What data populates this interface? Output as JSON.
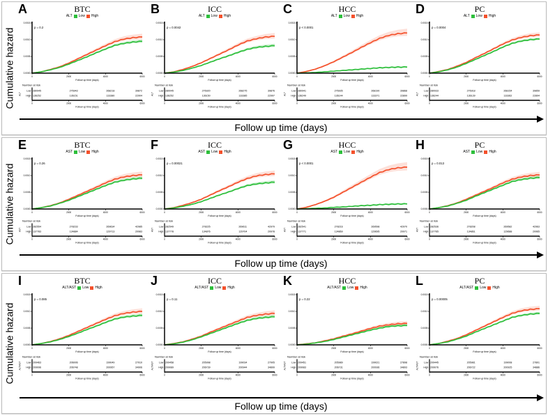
{
  "colors": {
    "low": "#2ebf3c",
    "high": "#f4512c",
    "low_fill": "rgba(46,191,60,0.22)",
    "high_fill": "rgba(244,81,44,0.18)",
    "axis": "#000000"
  },
  "legend": {
    "low": "Low",
    "high": "High"
  },
  "risk_table": {
    "title": "Number at risk",
    "row_labels": [
      "Low",
      "High"
    ]
  },
  "axis": {
    "x_title": "Follow up time (days)",
    "x_ticks": [
      "0",
      "2000",
      "4000",
      "6000"
    ],
    "x_tick_values": [
      0,
      2000,
      4000,
      6000
    ],
    "y_ticks": [
      "0.0000",
      "0.0005",
      "0.0010",
      "0.0015"
    ],
    "y_tick_values": [
      0,
      0.5,
      1.0,
      1.5
    ],
    "xlim": [
      0,
      6000
    ],
    "ylim_e3": [
      0,
      1.5
    ]
  },
  "rows": [
    {
      "y_axis_label": "Cumulative hazard",
      "x_axis_label": "Follow up time (days)",
      "group": "ALT"
    },
    {
      "y_axis_label": "Cumulative hazard",
      "x_axis_label": "Follow up time (days)",
      "group": "AST"
    },
    {
      "y_axis_label": "Cumulative hazard",
      "x_axis_label": "Follow up time (days)",
      "group": "ALT/AST"
    }
  ],
  "chart_data": {
    "type": "line",
    "y_unit": "cumulative hazard (×10⁻³)",
    "x_days": [
      0,
      500,
      1000,
      1500,
      2000,
      2500,
      3000,
      3500,
      4000,
      4500,
      5000,
      5500,
      6000
    ],
    "panels": [
      {
        "letter": "A",
        "title": "BTC",
        "group": "ALT",
        "p_value": "p = 0.2",
        "series": [
          {
            "name": "Low",
            "values": [
              0,
              0.04,
              0.1,
              0.17,
              0.27,
              0.38,
              0.49,
              0.61,
              0.72,
              0.83,
              0.89,
              0.93,
              0.95
            ]
          },
          {
            "name": "High",
            "values": [
              0,
              0.04,
              0.11,
              0.19,
              0.3,
              0.43,
              0.56,
              0.69,
              0.82,
              0.94,
              1.02,
              1.06,
              1.08
            ]
          }
        ],
        "ci_halfwidth": {
          "low": 0.06,
          "high": 0.1
        },
        "risk": {
          "Low": [
            "280945",
            "276943",
            "268218",
            "39872"
          ],
          "High": [
            "136252",
            "136151",
            "133380",
            "22904"
          ]
        }
      },
      {
        "letter": "B",
        "title": "ICC",
        "group": "ALT",
        "p_value": "p = 0.0042",
        "series": [
          {
            "name": "Low",
            "values": [
              0,
              0.03,
              0.08,
              0.15,
              0.23,
              0.33,
              0.43,
              0.52,
              0.62,
              0.71,
              0.77,
              0.8,
              0.82
            ]
          },
          {
            "name": "High",
            "values": [
              0,
              0.04,
              0.11,
              0.2,
              0.31,
              0.44,
              0.57,
              0.7,
              0.84,
              0.96,
              1.03,
              1.08,
              1.1
            ]
          }
        ],
        "ci_halfwidth": {
          "low": 0.06,
          "high": 0.1
        },
        "risk": {
          "Low": [
            "280045",
            "276920",
            "268275",
            "39876"
          ],
          "High": [
            "136252",
            "136150",
            "133385",
            "22997"
          ]
        }
      },
      {
        "letter": "C",
        "title": "HCC",
        "group": "ALT",
        "p_value": "p < 0.0001",
        "series": [
          {
            "name": "Low",
            "values": [
              0,
              0.01,
              0.02,
              0.04,
              0.06,
              0.08,
              0.1,
              0.12,
              0.14,
              0.16,
              0.17,
              0.18,
              0.18
            ]
          },
          {
            "name": "High",
            "values": [
              0,
              0.05,
              0.12,
              0.22,
              0.34,
              0.48,
              0.62,
              0.77,
              0.91,
              1.04,
              1.13,
              1.18,
              1.2
            ]
          }
        ],
        "ci_halfwidth": {
          "low": 0.03,
          "high": 0.13
        },
        "risk": {
          "Low": [
            "280941",
            "276935",
            "268190",
            "39868"
          ],
          "High": [
            "136249",
            "136144",
            "133371",
            "22899"
          ]
        }
      },
      {
        "letter": "D",
        "title": "PC",
        "group": "ALT",
        "p_value": "p = 0.0004",
        "series": [
          {
            "name": "Low",
            "values": [
              0,
              0.04,
              0.1,
              0.18,
              0.29,
              0.41,
              0.53,
              0.65,
              0.78,
              0.89,
              0.96,
              1.0,
              1.02
            ]
          },
          {
            "name": "High",
            "values": [
              0,
              0.05,
              0.11,
              0.21,
              0.32,
              0.46,
              0.59,
              0.73,
              0.87,
              0.99,
              1.07,
              1.12,
              1.14
            ]
          }
        ],
        "ci_halfwidth": {
          "low": 0.05,
          "high": 0.08
        },
        "risk": {
          "Low": [
            "280933",
            "276918",
            "268154",
            "39859"
          ],
          "High": [
            "136244",
            "136139",
            "133362",
            "22894"
          ]
        }
      },
      {
        "letter": "E",
        "title": "BTC",
        "group": "AST",
        "p_value": "p = 0.26",
        "series": [
          {
            "name": "Low",
            "values": [
              0,
              0.04,
              0.09,
              0.17,
              0.26,
              0.37,
              0.48,
              0.59,
              0.7,
              0.8,
              0.86,
              0.9,
              0.92
            ]
          },
          {
            "name": "High",
            "values": [
              0,
              0.04,
              0.1,
              0.18,
              0.29,
              0.41,
              0.53,
              0.65,
              0.78,
              0.89,
              0.96,
              1.0,
              1.02
            ]
          }
        ],
        "ci_halfwidth": {
          "low": 0.06,
          "high": 0.1
        },
        "risk": {
          "Low": [
            "282554",
            "278233",
            "269634",
            "42985"
          ],
          "High": [
            "137783",
            "134884",
            "129713",
            "20983"
          ]
        }
      },
      {
        "letter": "F",
        "title": "ICC",
        "group": "AST",
        "p_value": "p = 0.00021",
        "series": [
          {
            "name": "Low",
            "values": [
              0,
              0.03,
              0.08,
              0.14,
              0.22,
              0.32,
              0.42,
              0.51,
              0.61,
              0.7,
              0.75,
              0.78,
              0.8
            ]
          },
          {
            "name": "High",
            "values": [
              0,
              0.04,
              0.11,
              0.19,
              0.29,
              0.42,
              0.55,
              0.67,
              0.8,
              0.91,
              0.99,
              1.03,
              1.05
            ]
          }
        ],
        "ci_halfwidth": {
          "low": 0.06,
          "high": 0.1
        },
        "risk": {
          "Low": [
            "282549",
            "278225",
            "269611",
            "42979"
          ],
          "High": [
            "137778",
            "134876",
            "129704",
            "20978"
          ]
        }
      },
      {
        "letter": "G",
        "title": "HCC",
        "group": "AST",
        "p_value": "p < 0.0001",
        "series": [
          {
            "name": "Low",
            "values": [
              0,
              0.01,
              0.02,
              0.03,
              0.05,
              0.06,
              0.08,
              0.1,
              0.11,
              0.13,
              0.14,
              0.15,
              0.15
            ]
          },
          {
            "name": "High",
            "values": [
              0,
              0.05,
              0.13,
              0.23,
              0.35,
              0.5,
              0.65,
              0.8,
              0.95,
              1.09,
              1.18,
              1.23,
              1.25
            ]
          }
        ],
        "ci_halfwidth": {
          "low": 0.03,
          "high": 0.15
        },
        "risk": {
          "Low": [
            "282541",
            "278216",
            "269598",
            "42970"
          ],
          "High": [
            "137771",
            "134869",
            "129695",
            "20971"
          ]
        }
      },
      {
        "letter": "H",
        "title": "PC",
        "group": "AST",
        "p_value": "p = 0.013",
        "series": [
          {
            "name": "Low",
            "values": [
              0,
              0.04,
              0.09,
              0.17,
              0.26,
              0.38,
              0.49,
              0.6,
              0.71,
              0.82,
              0.88,
              0.92,
              0.94
            ]
          },
          {
            "name": "High",
            "values": [
              0,
              0.04,
              0.1,
              0.18,
              0.29,
              0.41,
              0.53,
              0.65,
              0.78,
              0.89,
              0.96,
              1.0,
              1.02
            ]
          }
        ],
        "ci_halfwidth": {
          "low": 0.06,
          "high": 0.09
        },
        "risk": {
          "Low": [
            "282536",
            "278208",
            "269582",
            "42963"
          ],
          "High": [
            "137765",
            "134861",
            "129688",
            "20965"
          ]
        }
      },
      {
        "letter": "I",
        "title": "BTC",
        "group": "ALT/AST",
        "p_value": "p = 0.085",
        "series": [
          {
            "name": "Low",
            "values": [
              0,
              0.04,
              0.09,
              0.16,
              0.25,
              0.35,
              0.46,
              0.56,
              0.67,
              0.77,
              0.83,
              0.86,
              0.88
            ]
          },
          {
            "name": "High",
            "values": [
              0,
              0.04,
              0.1,
              0.18,
              0.28,
              0.4,
              0.52,
              0.64,
              0.76,
              0.87,
              0.94,
              0.98,
              1.0
            ]
          }
        ],
        "ci_halfwidth": {
          "low": 0.06,
          "high": 0.09
        },
        "risk": {
          "Low": [
            "209463",
            "206006",
            "199049",
            "27910"
          ],
          "High": [
            "209096",
            "206748",
            "200957",
            "34906"
          ]
        }
      },
      {
        "letter": "J",
        "title": "ICC",
        "group": "ALT/AST",
        "p_value": "p = 0.11",
        "series": [
          {
            "name": "Low",
            "values": [
              0,
              0.03,
              0.08,
              0.15,
              0.24,
              0.34,
              0.44,
              0.54,
              0.64,
              0.73,
              0.79,
              0.82,
              0.84
            ]
          },
          {
            "name": "High",
            "values": [
              0,
              0.04,
              0.09,
              0.17,
              0.26,
              0.38,
              0.49,
              0.6,
              0.71,
              0.82,
              0.88,
              0.92,
              0.94
            ]
          }
        ],
        "ci_halfwidth": {
          "low": 0.06,
          "high": 0.09
        },
        "risk": {
          "Low": [
            "209458",
            "205998",
            "199034",
            "27905"
          ],
          "High": [
            "209089",
            "206739",
            "200944",
            "34899"
          ]
        }
      },
      {
        "letter": "K",
        "title": "HCC",
        "group": "ALT/AST",
        "p_value": "p = 0.22",
        "series": [
          {
            "name": "Low",
            "values": [
              0,
              0.02,
              0.06,
              0.1,
              0.16,
              0.23,
              0.3,
              0.37,
              0.44,
              0.5,
              0.55,
              0.57,
              0.58
            ]
          },
          {
            "name": "High",
            "values": [
              0,
              0.03,
              0.06,
              0.12,
              0.18,
              0.26,
              0.33,
              0.41,
              0.49,
              0.56,
              0.6,
              0.63,
              0.64
            ]
          }
        ],
        "ci_halfwidth": {
          "low": 0.05,
          "high": 0.07
        },
        "risk": {
          "Low": [
            "209451",
            "205989",
            "199021",
            "27898"
          ],
          "High": [
            "209083",
            "206731",
            "200936",
            "34893"
          ]
        }
      },
      {
        "letter": "L",
        "title": "PC",
        "group": "ALT/AST",
        "p_value": "p = 0.00005",
        "series": [
          {
            "name": "Low",
            "values": [
              0,
              0.04,
              0.09,
              0.17,
              0.26,
              0.38,
              0.49,
              0.6,
              0.71,
              0.82,
              0.88,
              0.92,
              0.94
            ]
          },
          {
            "name": "High",
            "values": [
              0,
              0.04,
              0.11,
              0.19,
              0.3,
              0.43,
              0.56,
              0.69,
              0.82,
              0.94,
              1.02,
              1.06,
              1.08
            ]
          }
        ],
        "ci_halfwidth": {
          "low": 0.05,
          "high": 0.09
        },
        "risk": {
          "Low": [
            "209445",
            "205981",
            "199008",
            "27891"
          ],
          "High": [
            "209076",
            "206722",
            "200925",
            "34886"
          ]
        }
      }
    ]
  }
}
